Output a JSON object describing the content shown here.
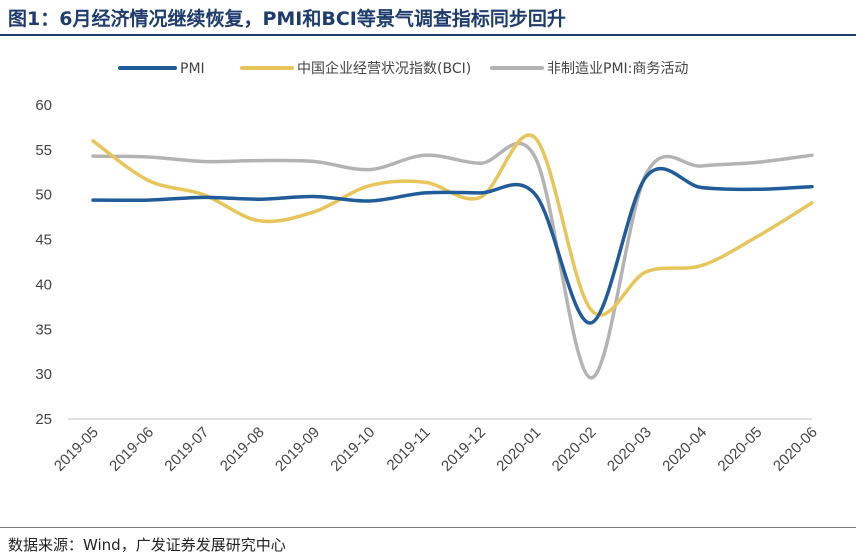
{
  "header": {
    "title": "图1：6月经济情况继续恢复，PMI和BCI等景气调查指标同步回升"
  },
  "footer": {
    "source": "数据来源：Wind，广发证券发展研究中心"
  },
  "chart_data": {
    "type": "line",
    "title": "图1：6月经济情况继续恢复，PMI和BCI等景气调查指标同步回升",
    "xlabel": "",
    "ylabel": "",
    "ylim": [
      25,
      60
    ],
    "yticks": [
      25,
      30,
      35,
      40,
      45,
      50,
      55,
      60
    ],
    "grid": false,
    "legend_position": "top",
    "categories": [
      "2019-05",
      "2019-06",
      "2019-07",
      "2019-08",
      "2019-09",
      "2019-10",
      "2019-11",
      "2019-12",
      "2020-01",
      "2020-02",
      "2020-03",
      "2020-04",
      "2020-05",
      "2020-06"
    ],
    "series": [
      {
        "name": "PMI",
        "color": "#1f5c99",
        "values": [
          49.4,
          49.4,
          49.7,
          49.5,
          49.8,
          49.3,
          50.2,
          50.2,
          50.0,
          35.7,
          52.0,
          50.8,
          50.6,
          50.9
        ]
      },
      {
        "name": "中国企业经营状况指数(BCI)",
        "color": "#e8c55a",
        "values": [
          56.0,
          51.6,
          50.0,
          47.1,
          48.1,
          51.0,
          51.4,
          49.7,
          56.3,
          37.2,
          41.4,
          42.1,
          45.3,
          49.1
        ]
      },
      {
        "name": "非制造业PMI:商务活动",
        "color": "#b3b3b3",
        "values": [
          54.3,
          54.2,
          53.7,
          53.8,
          53.7,
          52.8,
          54.4,
          53.5,
          54.1,
          29.6,
          52.3,
          53.2,
          53.6,
          54.4
        ]
      }
    ]
  }
}
